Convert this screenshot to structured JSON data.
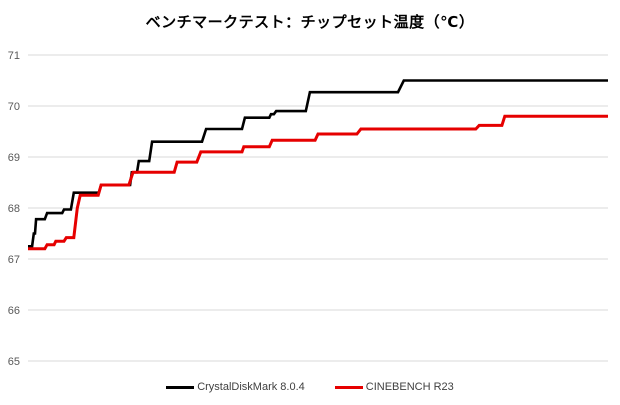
{
  "title": "ベンチマークテスト：チップセット温度（℃）",
  "chart_data": {
    "type": "line",
    "subtype": "step",
    "title": "ベンチマークテスト：チップセット温度（℃）",
    "xlabel": "",
    "ylabel": "",
    "x_axis": {
      "visible": false,
      "note": "no tick labels shown; x = % of test duration"
    },
    "y_axis": {
      "min": 65,
      "max": 71,
      "ticks": [
        71,
        70,
        69,
        68,
        67,
        66,
        65
      ]
    },
    "grid": "horizontal-only",
    "grid_color": "#d9d9d9",
    "tick_label_color": "#595959",
    "legend_position": "bottom-center",
    "series": [
      {
        "name": "CrystalDiskMark 8.0.4",
        "color": "#000000",
        "points": [
          [
            0,
            67.25
          ],
          [
            0.7,
            67.25
          ],
          [
            1.0,
            67.5
          ],
          [
            1.2,
            67.5
          ],
          [
            1.4,
            67.78
          ],
          [
            2.9,
            67.78
          ],
          [
            3.3,
            67.9
          ],
          [
            5.9,
            67.9
          ],
          [
            6.2,
            67.97
          ],
          [
            7.4,
            67.97
          ],
          [
            7.9,
            68.3
          ],
          [
            12.2,
            68.3
          ],
          [
            12.6,
            68.45
          ],
          [
            17.6,
            68.45
          ],
          [
            17.9,
            68.7
          ],
          [
            18.8,
            68.7
          ],
          [
            19.1,
            68.92
          ],
          [
            20.9,
            68.92
          ],
          [
            21.4,
            69.3
          ],
          [
            30.0,
            69.3
          ],
          [
            30.7,
            69.55
          ],
          [
            36.9,
            69.55
          ],
          [
            37.4,
            69.77
          ],
          [
            41.6,
            69.77
          ],
          [
            41.9,
            69.84
          ],
          [
            42.4,
            69.84
          ],
          [
            42.8,
            69.9
          ],
          [
            47.9,
            69.9
          ],
          [
            48.6,
            70.27
          ],
          [
            63.8,
            70.27
          ],
          [
            64.8,
            70.5
          ],
          [
            100,
            70.5
          ]
        ]
      },
      {
        "name": "CINEBENCH R23",
        "color": "#e60000",
        "points": [
          [
            0,
            67.2
          ],
          [
            2.9,
            67.2
          ],
          [
            3.3,
            67.28
          ],
          [
            4.5,
            67.28
          ],
          [
            4.8,
            67.35
          ],
          [
            6.2,
            67.35
          ],
          [
            6.6,
            67.42
          ],
          [
            7.9,
            67.42
          ],
          [
            8.5,
            68.0
          ],
          [
            9.0,
            68.25
          ],
          [
            12.1,
            68.25
          ],
          [
            12.6,
            68.45
          ],
          [
            17.4,
            68.45
          ],
          [
            18.1,
            68.7
          ],
          [
            25.2,
            68.7
          ],
          [
            25.7,
            68.9
          ],
          [
            29.1,
            68.9
          ],
          [
            29.8,
            69.1
          ],
          [
            36.9,
            69.1
          ],
          [
            37.2,
            69.2
          ],
          [
            41.6,
            69.2
          ],
          [
            42.1,
            69.33
          ],
          [
            49.5,
            69.33
          ],
          [
            50.0,
            69.45
          ],
          [
            56.7,
            69.45
          ],
          [
            57.4,
            69.55
          ],
          [
            77.2,
            69.55
          ],
          [
            77.8,
            69.62
          ],
          [
            81.7,
            69.62
          ],
          [
            82.2,
            69.8
          ],
          [
            100,
            69.8
          ]
        ]
      }
    ]
  },
  "legend": {
    "items": [
      {
        "label": "CrystalDiskMark 8.0.4"
      },
      {
        "label": "CINEBENCH R23"
      }
    ]
  }
}
